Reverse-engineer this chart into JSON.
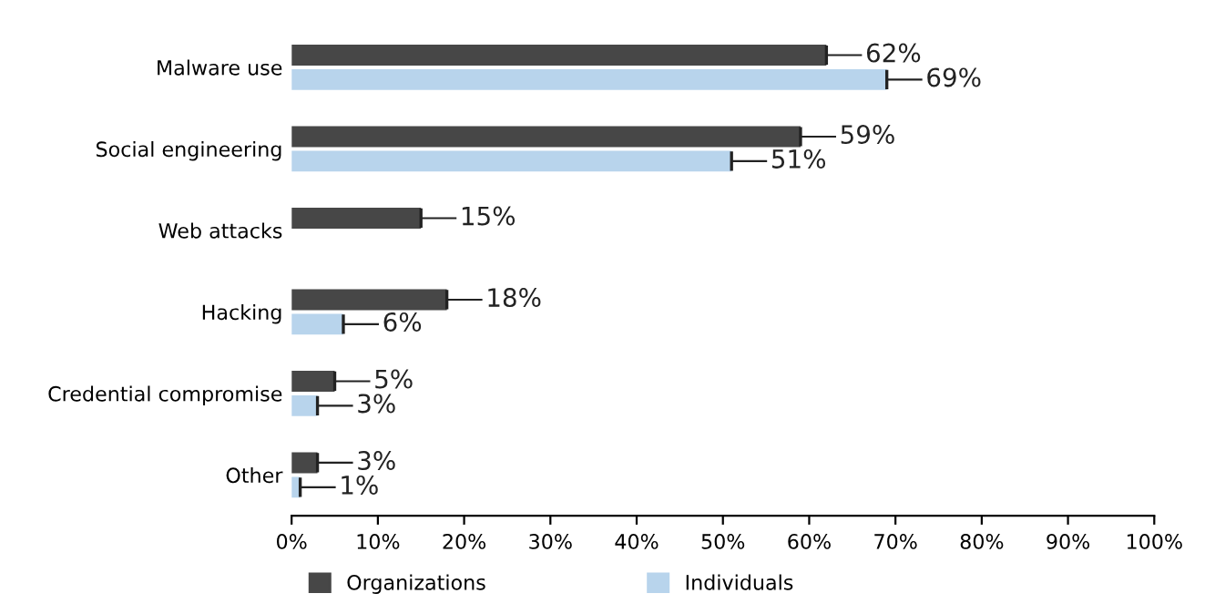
{
  "chart_data": {
    "type": "bar",
    "orientation": "horizontal",
    "categories": [
      "Malware use",
      "Social engineering",
      "Web attacks",
      "Hacking",
      "Credential compromise",
      "Other"
    ],
    "series": [
      {
        "name": "Organizations",
        "color": "#474747",
        "values": [
          62,
          59,
          15,
          18,
          5,
          3
        ],
        "value_labels": [
          "62%",
          "59%",
          "15%",
          "18%",
          "5%",
          "3%"
        ]
      },
      {
        "name": "Individuals",
        "color": "#b8d4ec",
        "values": [
          69,
          51,
          null,
          6,
          3,
          1
        ],
        "value_labels": [
          "69%",
          "51%",
          null,
          "6%",
          "3%",
          "1%"
        ]
      }
    ],
    "xlim": [
      0,
      100
    ],
    "xticks": [
      {
        "value": 0,
        "label": "0%"
      },
      {
        "value": 10,
        "label": "10%"
      },
      {
        "value": 20,
        "label": "20%"
      },
      {
        "value": 30,
        "label": "30%"
      },
      {
        "value": 40,
        "label": "40%"
      },
      {
        "value": 50,
        "label": "50%"
      },
      {
        "value": 60,
        "label": "60%"
      },
      {
        "value": 70,
        "label": "70%"
      },
      {
        "value": 80,
        "label": "80%"
      },
      {
        "value": 90,
        "label": "90%"
      },
      {
        "value": 100,
        "label": "100%"
      }
    ],
    "grid": false,
    "legend": "bottom"
  }
}
